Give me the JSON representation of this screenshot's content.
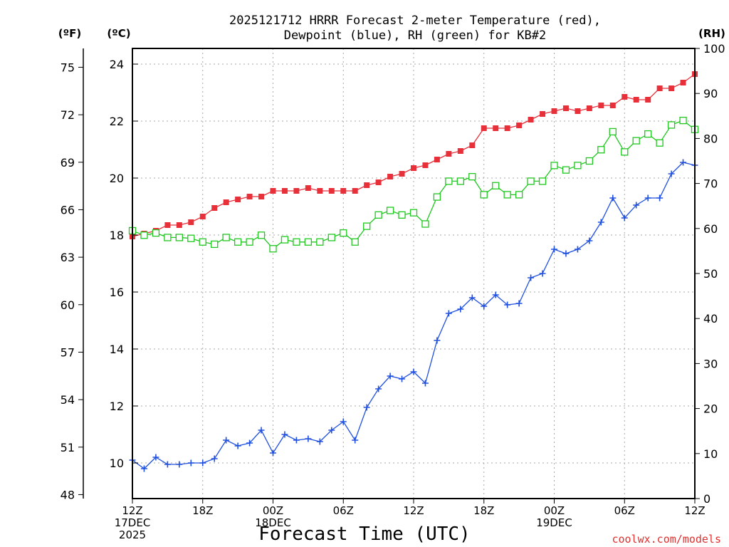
{
  "chart_data": {
    "type": "line",
    "title_lines": [
      "2025121712 HRRR Forecast 2-meter Temperature (red),",
      "Dewpoint (blue), RH (green) for KB#2"
    ],
    "xlabel": "Forecast Time (UTC)",
    "credit": "coolwx.com/models",
    "units": {
      "f": "(ºF)",
      "c": "(ºC)",
      "rh": "(RH)"
    },
    "x_hours_range": [
      0,
      48
    ],
    "x_ticks": [
      {
        "hour": 0,
        "lines": [
          "12Z",
          "17DEC",
          "2025"
        ]
      },
      {
        "hour": 6,
        "lines": [
          "18Z"
        ]
      },
      {
        "hour": 12,
        "lines": [
          "00Z",
          "18DEC"
        ]
      },
      {
        "hour": 18,
        "lines": [
          "06Z"
        ]
      },
      {
        "hour": 24,
        "lines": [
          "12Z"
        ]
      },
      {
        "hour": 30,
        "lines": [
          "18Z"
        ]
      },
      {
        "hour": 36,
        "lines": [
          "00Z",
          "19DEC"
        ]
      },
      {
        "hour": 42,
        "lines": [
          "06Z"
        ]
      },
      {
        "hour": 48,
        "lines": [
          "12Z"
        ]
      }
    ],
    "c_axis": {
      "range": [
        8.75,
        24.55
      ],
      "ticks": [
        "10",
        "12",
        "14",
        "16",
        "18",
        "20",
        "22",
        "24"
      ]
    },
    "f_ticks": [
      "48",
      "51",
      "54",
      "57",
      "60",
      "63",
      "66",
      "69",
      "72",
      "75"
    ],
    "rh_axis": {
      "range": [
        0,
        100
      ],
      "ticks": [
        "0",
        "10",
        "20",
        "30",
        "40",
        "50",
        "60",
        "70",
        "80",
        "90",
        "100"
      ]
    },
    "series": [
      {
        "name": "2-meter Temperature",
        "color": "#e8303a",
        "marker": "filled-square",
        "axis": "c",
        "values": [
          17.95,
          18.05,
          18.15,
          18.35,
          18.35,
          18.45,
          18.65,
          18.95,
          19.15,
          19.25,
          19.35,
          19.35,
          19.55,
          19.55,
          19.55,
          19.65,
          19.55,
          19.55,
          19.55,
          19.55,
          19.75,
          19.85,
          20.05,
          20.15,
          20.35,
          20.45,
          20.65,
          20.85,
          20.95,
          21.15,
          21.75,
          21.75,
          21.75,
          21.85,
          22.05,
          22.25,
          22.35,
          22.45,
          22.35,
          22.45,
          22.55,
          22.55,
          22.85,
          22.75,
          22.75,
          23.15,
          23.15,
          23.35,
          23.65
        ]
      },
      {
        "name": "Dewpoint",
        "color": "#2050e0",
        "marker": "plus",
        "axis": "c",
        "values": [
          10.1,
          9.8,
          10.2,
          9.95,
          9.95,
          10.0,
          10.0,
          10.15,
          10.8,
          10.6,
          10.7,
          11.15,
          10.35,
          11.0,
          10.8,
          10.85,
          10.75,
          11.15,
          11.45,
          10.8,
          11.95,
          12.6,
          13.05,
          12.95,
          13.2,
          12.8,
          14.3,
          15.25,
          15.4,
          15.8,
          15.5,
          15.9,
          15.55,
          15.6,
          16.5,
          16.65,
          17.5,
          17.35,
          17.5,
          17.8,
          18.45,
          19.3,
          18.6,
          19.05,
          19.3,
          19.3,
          20.15,
          20.55,
          20.45
        ]
      },
      {
        "name": "RH",
        "color": "#20c820",
        "marker": "open-square",
        "axis": "rh",
        "values": [
          59.5,
          58.5,
          59.0,
          58.0,
          58.0,
          57.8,
          57.0,
          56.5,
          58.0,
          57.0,
          57.0,
          58.5,
          55.5,
          57.5,
          57.0,
          57.0,
          57.0,
          58.0,
          59.0,
          57.0,
          60.5,
          63.0,
          64.0,
          63.0,
          63.5,
          61.0,
          67.0,
          70.5,
          70.5,
          71.5,
          67.5,
          69.5,
          67.5,
          67.5,
          70.5,
          70.5,
          74.0,
          73.0,
          74.0,
          75.0,
          77.5,
          81.5,
          77.0,
          79.5,
          81.0,
          79.0,
          83.0,
          84.0,
          82.0
        ]
      }
    ]
  }
}
